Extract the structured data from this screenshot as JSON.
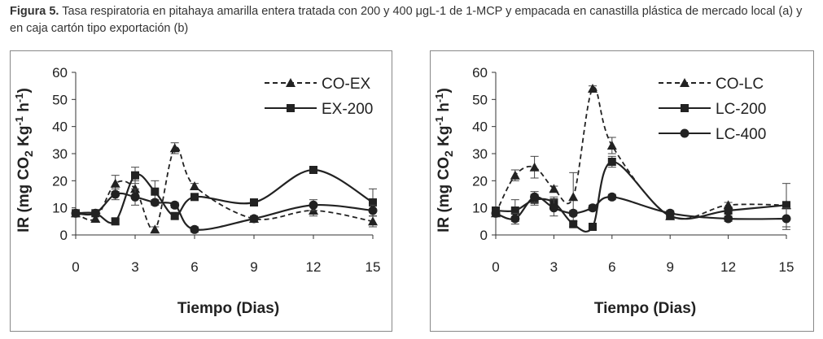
{
  "caption": {
    "prefix": "Figura 5.",
    "text": "Tasa respiratoria en pitahaya amarilla entera tratada con 200 y 400 μgL-1 de 1-MCP y empacada en canastilla plástica de mercado local (a) y en caja cartón tipo exportación (b)"
  },
  "chart_data": [
    {
      "type": "line",
      "panel": "a",
      "xlabel": "Tiempo (Dias)",
      "ylabel": "IR (mg CO2 Kg-1 h-1)",
      "xlim": [
        0,
        15
      ],
      "ylim": [
        0,
        60
      ],
      "xticks": [
        0,
        3,
        6,
        9,
        12,
        15
      ],
      "yticks": [
        0,
        10,
        20,
        30,
        40,
        50,
        60
      ],
      "legend_position": "top-right",
      "series": [
        {
          "name": "CO-EX",
          "style": "dashed",
          "marker": "triangle",
          "x": [
            0,
            1,
            2,
            3,
            4,
            5,
            6,
            9,
            12,
            15
          ],
          "y": [
            8,
            6,
            19,
            17,
            2,
            32,
            18,
            6,
            9,
            5
          ],
          "err": [
            1,
            1,
            3,
            3,
            1,
            2,
            1,
            1,
            2,
            2
          ]
        },
        {
          "name": "EX-200",
          "style": "solid",
          "marker": "square",
          "x": [
            0,
            1,
            2,
            3,
            4,
            5,
            6,
            9,
            12,
            15
          ],
          "y": [
            8,
            8,
            5,
            22,
            16,
            7,
            14,
            12,
            24,
            12
          ],
          "err": [
            1,
            1,
            1,
            3,
            4,
            1,
            1,
            1,
            1,
            5
          ]
        },
        {
          "name": "",
          "style": "solid",
          "marker": "circle",
          "in_legend": false,
          "x": [
            0,
            1,
            2,
            3,
            4,
            5,
            6,
            9,
            12,
            15
          ],
          "y": [
            8,
            8,
            15,
            14,
            12,
            11,
            2,
            6,
            11,
            9
          ],
          "err": [
            1,
            1,
            2,
            3,
            1,
            1,
            1,
            1,
            2,
            2
          ]
        }
      ]
    },
    {
      "type": "line",
      "panel": "b",
      "xlabel": "Tiempo (Dias)",
      "ylabel": "IR (mg CO2 Kg-1 h-1)",
      "xlim": [
        0,
        15
      ],
      "ylim": [
        0,
        60
      ],
      "xticks": [
        0,
        3,
        6,
        9,
        12,
        15
      ],
      "yticks": [
        0,
        10,
        20,
        30,
        40,
        50,
        60
      ],
      "legend_position": "top-right",
      "series": [
        {
          "name": "CO-LC",
          "style": "dashed",
          "marker": "triangle",
          "x": [
            0,
            1,
            2,
            3,
            4,
            5,
            6,
            9,
            12,
            15
          ],
          "y": [
            8,
            22,
            25,
            17,
            14,
            54,
            33,
            7,
            11,
            11
          ],
          "err": [
            1,
            2,
            4,
            1,
            9,
            1,
            3,
            1,
            1,
            8
          ]
        },
        {
          "name": "LC-200",
          "style": "solid",
          "marker": "square",
          "x": [
            0,
            1,
            2,
            3,
            4,
            5,
            6,
            9,
            12,
            15
          ],
          "y": [
            9,
            9,
            13,
            12,
            4,
            3,
            27,
            7,
            9,
            11
          ],
          "err": [
            1,
            4,
            2,
            2,
            1,
            1,
            2,
            1,
            1,
            1
          ]
        },
        {
          "name": "LC-400",
          "style": "solid",
          "marker": "circle",
          "x": [
            0,
            1,
            2,
            3,
            4,
            5,
            6,
            9,
            12,
            15
          ],
          "y": [
            8,
            6,
            14,
            10,
            8,
            10,
            14,
            8,
            6,
            6
          ],
          "err": [
            1,
            2,
            2,
            3,
            1,
            1,
            1,
            1,
            1,
            4
          ]
        }
      ]
    }
  ]
}
